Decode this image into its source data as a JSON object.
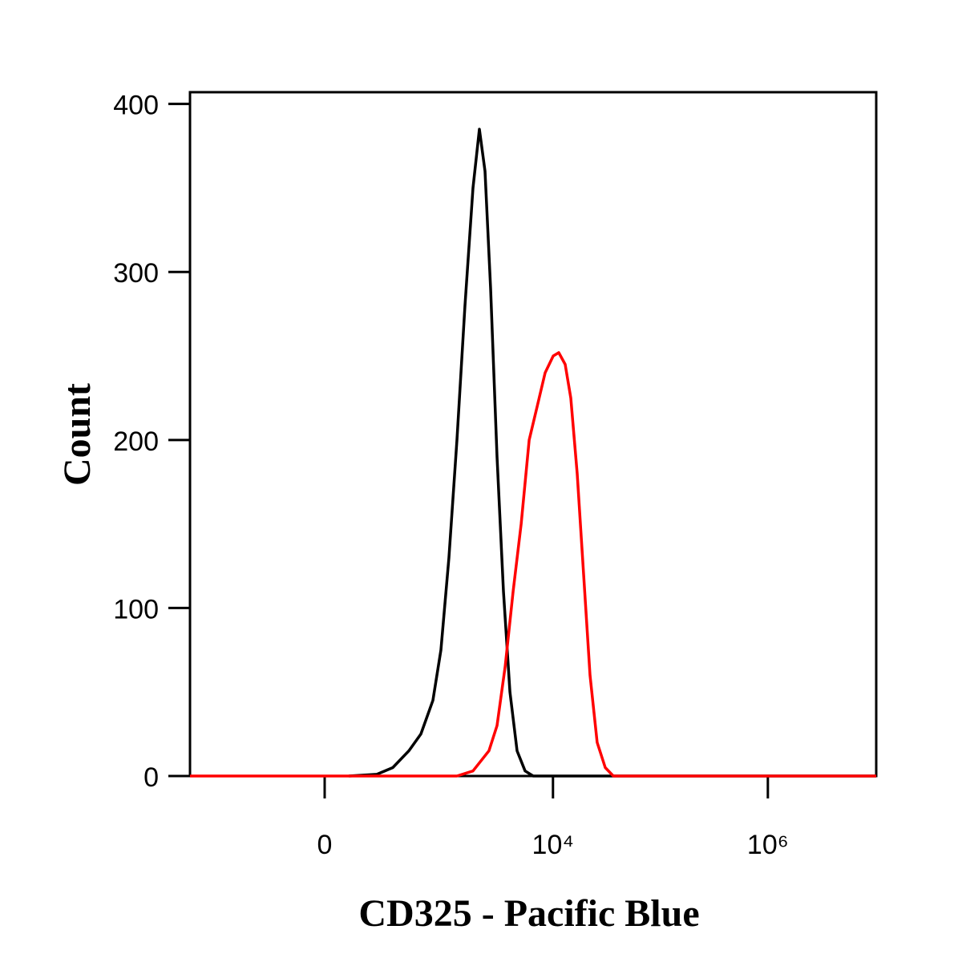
{
  "chart_data": {
    "type": "line",
    "x_label": "CD325 - Pacific Blue",
    "y_label": "Count",
    "xscale": "asinh",
    "xlim": [
      -1340,
      10200000
    ],
    "xticks": [
      0,
      {
        "value": 10000,
        "label": "10⁴"
      },
      {
        "value": 1000000,
        "label": "10⁶"
      }
    ],
    "ylim": [
      0,
      407
    ],
    "yticks": [
      0,
      100,
      200,
      300,
      400
    ],
    "series": [
      {
        "color": "#000000",
        "x": [
          81,
          205,
          306,
          443,
          580,
          756,
          899,
          1071,
          1274,
          1514,
          1799,
          2064,
          2328,
          2627,
          3015,
          3460,
          3975,
          4635,
          5505,
          6540,
          10200000
        ],
        "values": [
          0,
          1,
          5,
          15,
          25,
          45,
          75,
          130,
          200,
          280,
          350,
          385,
          360,
          290,
          190,
          110,
          50,
          15,
          3,
          0,
          0
        ]
      },
      {
        "color": "#ff0000",
        "x": [
          -1340,
          1274,
          1799,
          2535,
          3015,
          3585,
          4260,
          5055,
          6000,
          7125,
          8460,
          10050,
          11330,
          12990,
          14650,
          16800,
          19290,
          22130,
          25800,
          30680,
          36450,
          10200000
        ],
        "values": [
          0,
          0,
          3,
          15,
          30,
          65,
          110,
          150,
          200,
          220,
          240,
          250,
          252,
          245,
          225,
          180,
          120,
          60,
          20,
          5,
          0,
          0
        ]
      }
    ]
  }
}
